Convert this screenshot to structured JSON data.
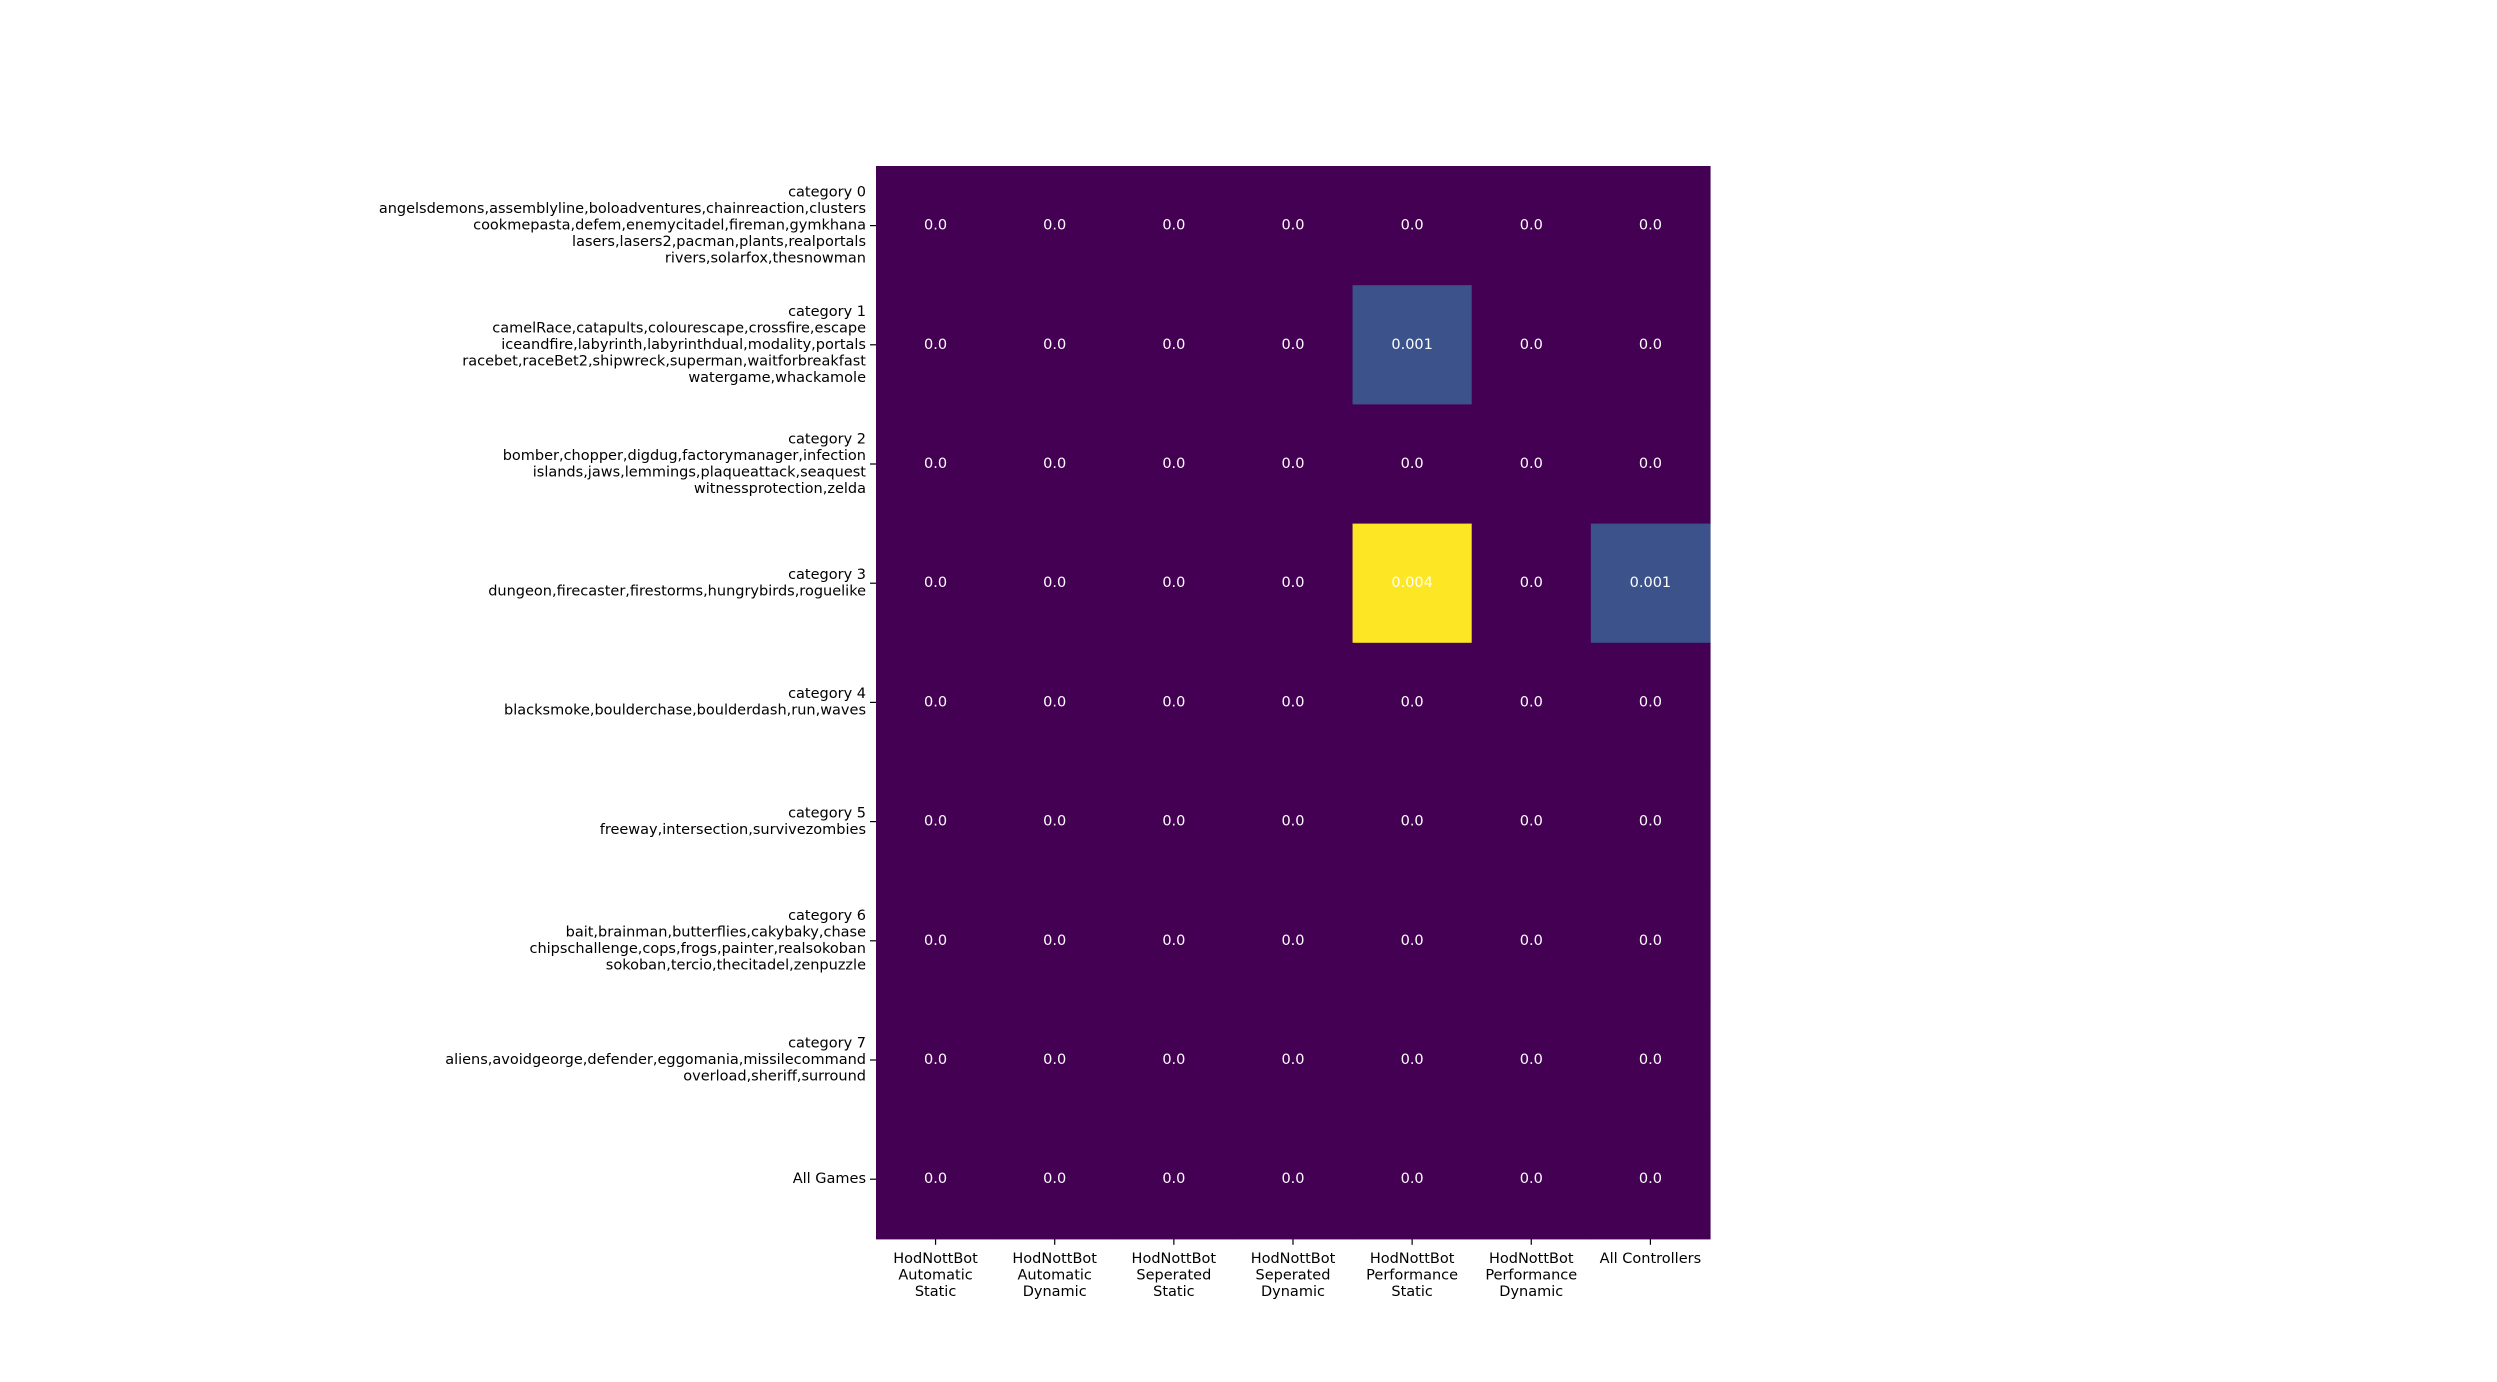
{
  "chart_data": {
    "type": "heatmap",
    "title": "",
    "xlabel": "",
    "ylabel": "",
    "colormap": [
      "#440154",
      "#3b528b",
      "#21918c",
      "#5ec962",
      "#fde725"
    ],
    "value_range": [
      0,
      0.004
    ],
    "columns": [
      [
        "HodNottBot",
        "Automatic",
        "Static"
      ],
      [
        "HodNottBot",
        "Automatic",
        "Dynamic"
      ],
      [
        "HodNottBot",
        "Seperated",
        "Static"
      ],
      [
        "HodNottBot",
        "Seperated",
        "Dynamic"
      ],
      [
        "HodNottBot",
        "Performance",
        "Static"
      ],
      [
        "HodNottBot",
        "Performance",
        "Dynamic"
      ],
      [
        "All Controllers"
      ]
    ],
    "rows": [
      [
        "category 0",
        "angelsdemons,assemblyline,boloadventures,chainreaction,clusters",
        "cookmepasta,defem,enemycitadel,fireman,gymkhana",
        "lasers,lasers2,pacman,plants,realportals",
        "rivers,solarfox,thesnowman"
      ],
      [
        "category 1",
        "camelRace,catapults,colourescape,crossfire,escape",
        "iceandfire,labyrinth,labyrinthdual,modality,portals",
        "racebet,raceBet2,shipwreck,superman,waitforbreakfast",
        "watergame,whackamole"
      ],
      [
        "category 2",
        "bomber,chopper,digdug,factorymanager,infection",
        "islands,jaws,lemmings,plaqueattack,seaquest",
        "witnessprotection,zelda"
      ],
      [
        "category 3",
        "dungeon,firecaster,firestorms,hungrybirds,roguelike"
      ],
      [
        "category 4",
        "blacksmoke,boulderchase,boulderdash,run,waves"
      ],
      [
        "category 5",
        "freeway,intersection,survivezombies"
      ],
      [
        "category 6",
        "bait,brainman,butterflies,cakybaky,chase",
        "chipschallenge,cops,frogs,painter,realsokoban",
        "sokoban,tercio,thecitadel,zenpuzzle"
      ],
      [
        "category 7",
        "aliens,avoidgeorge,defender,eggomania,missilecommand",
        "overload,sheriff,surround"
      ],
      [
        "All Games"
      ]
    ],
    "values": [
      [
        0,
        0,
        0,
        0,
        0,
        0,
        0
      ],
      [
        0,
        0,
        0,
        0,
        0.001,
        0,
        0
      ],
      [
        0,
        0,
        0,
        0,
        0,
        0,
        0
      ],
      [
        0,
        0,
        0,
        0,
        0.004,
        0,
        0.001
      ],
      [
        0,
        0,
        0,
        0,
        0,
        0,
        0
      ],
      [
        0,
        0,
        0,
        0,
        0,
        0,
        0
      ],
      [
        0,
        0,
        0,
        0,
        0,
        0,
        0
      ],
      [
        0,
        0,
        0,
        0,
        0,
        0,
        0
      ],
      [
        0,
        0,
        0,
        0,
        0,
        0,
        0
      ]
    ],
    "cell_labels": [
      [
        "0.0",
        "0.0",
        "0.0",
        "0.0",
        "0.0",
        "0.0",
        "0.0"
      ],
      [
        "0.0",
        "0.0",
        "0.0",
        "0.0",
        "0.001",
        "0.0",
        "0.0"
      ],
      [
        "0.0",
        "0.0",
        "0.0",
        "0.0",
        "0.0",
        "0.0",
        "0.0"
      ],
      [
        "0.0",
        "0.0",
        "0.0",
        "0.0",
        "0.004",
        "0.0",
        "0.001"
      ],
      [
        "0.0",
        "0.0",
        "0.0",
        "0.0",
        "0.0",
        "0.0",
        "0.0"
      ],
      [
        "0.0",
        "0.0",
        "0.0",
        "0.0",
        "0.0",
        "0.0",
        "0.0"
      ],
      [
        "0.0",
        "0.0",
        "0.0",
        "0.0",
        "0.0",
        "0.0",
        "0.0"
      ],
      [
        "0.0",
        "0.0",
        "0.0",
        "0.0",
        "0.0",
        "0.0",
        "0.0"
      ],
      [
        "0.0",
        "0.0",
        "0.0",
        "0.0",
        "0.0",
        "0.0",
        "0.0"
      ]
    ]
  }
}
